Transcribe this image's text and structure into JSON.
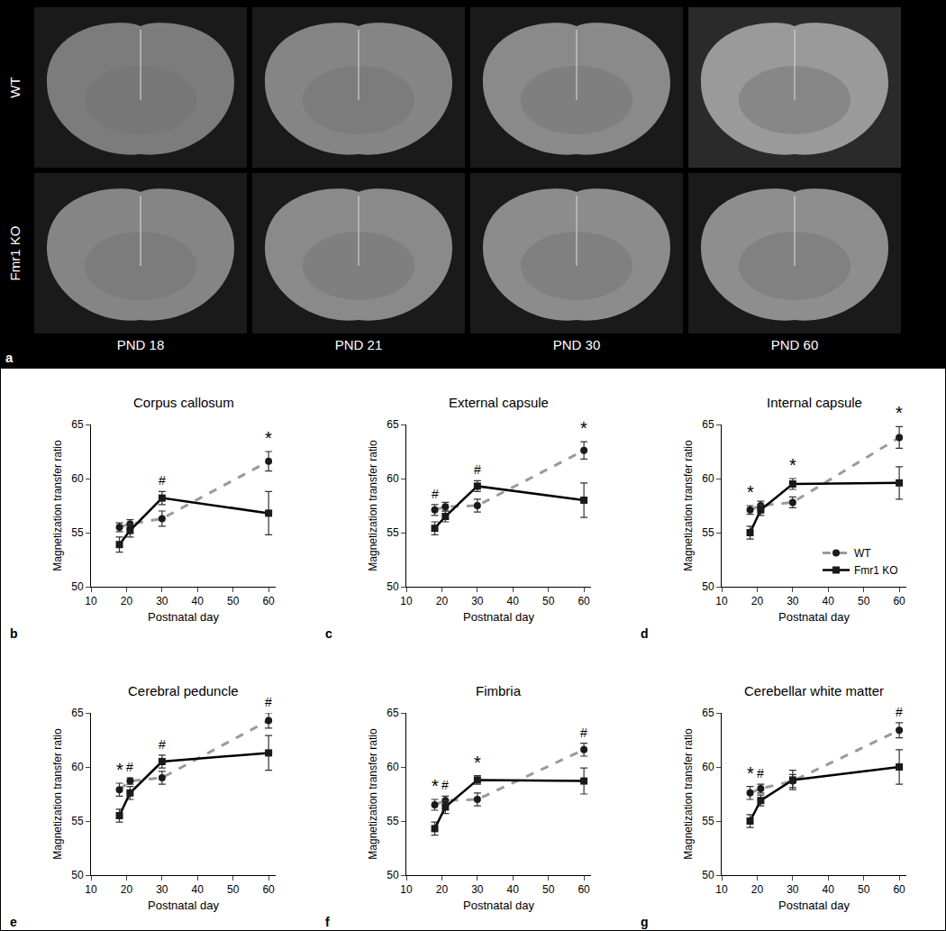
{
  "panel_a": {
    "label": "a",
    "rows": [
      "WT",
      "Fmr1 KO"
    ],
    "columns": [
      "PND 18",
      "PND 21",
      "PND 30",
      "PND 60"
    ]
  },
  "chart_data": [
    {
      "type": "line",
      "panel": "b",
      "title": "Corpus callosum",
      "x_label": "Postnatal day",
      "y_label": "Magnetization transfer ratio",
      "x": [
        18,
        21,
        30,
        60
      ],
      "xlim": [
        10,
        62
      ],
      "xticks": [
        10,
        20,
        30,
        40,
        50,
        60
      ],
      "ylim": [
        50,
        65
      ],
      "yticks": [
        50,
        55,
        60,
        65
      ],
      "grid": false,
      "series": [
        {
          "name": "WT",
          "color": "#9a9a9a",
          "line_style": "dashed",
          "marker": "circle",
          "values": [
            55.5,
            55.8,
            56.3,
            61.6
          ],
          "errors": [
            0.4,
            0.4,
            0.7,
            0.9
          ]
        },
        {
          "name": "Fmr1 KO",
          "color": "#000000",
          "line_style": "solid",
          "marker": "square",
          "values": [
            53.9,
            55.2,
            58.2,
            56.8
          ],
          "errors": [
            0.7,
            0.6,
            0.6,
            2.0
          ]
        }
      ],
      "annotations": [
        {
          "x": 30,
          "text": "#"
        },
        {
          "x": 60,
          "text": "*"
        }
      ]
    },
    {
      "type": "line",
      "panel": "c",
      "title": "External capsule",
      "x_label": "Postnatal day",
      "y_label": "Magnetization transfer ratio",
      "x": [
        18,
        21,
        30,
        60
      ],
      "xlim": [
        10,
        62
      ],
      "xticks": [
        10,
        20,
        30,
        40,
        50,
        60
      ],
      "ylim": [
        50,
        65
      ],
      "yticks": [
        50,
        55,
        60,
        65
      ],
      "grid": false,
      "series": [
        {
          "name": "WT",
          "color": "#9a9a9a",
          "line_style": "dashed",
          "marker": "circle",
          "values": [
            57.1,
            57.4,
            57.5,
            62.6
          ],
          "errors": [
            0.5,
            0.4,
            0.6,
            0.8
          ]
        },
        {
          "name": "Fmr1 KO",
          "color": "#000000",
          "line_style": "solid",
          "marker": "square",
          "values": [
            55.4,
            56.5,
            59.3,
            58.0
          ],
          "errors": [
            0.6,
            0.5,
            0.5,
            1.6
          ]
        }
      ],
      "annotations": [
        {
          "x": 18,
          "text": "#"
        },
        {
          "x": 30,
          "text": "#"
        },
        {
          "x": 60,
          "text": "*"
        }
      ]
    },
    {
      "type": "line",
      "panel": "d",
      "title": "Internal capsule",
      "x_label": "Postnatal day",
      "y_label": "Magnetization transfer ratio",
      "x": [
        18,
        21,
        30,
        60
      ],
      "xlim": [
        10,
        62
      ],
      "xticks": [
        10,
        20,
        30,
        40,
        50,
        60
      ],
      "ylim": [
        50,
        65
      ],
      "yticks": [
        50,
        55,
        60,
        65
      ],
      "grid": false,
      "legend": "lower right",
      "series": [
        {
          "name": "WT",
          "color": "#9a9a9a",
          "line_style": "dashed",
          "marker": "circle",
          "values": [
            57.1,
            57.5,
            57.8,
            63.8
          ],
          "errors": [
            0.4,
            0.4,
            0.5,
            1.0
          ]
        },
        {
          "name": "Fmr1 KO",
          "color": "#000000",
          "line_style": "solid",
          "marker": "square",
          "values": [
            55.0,
            57.1,
            59.5,
            59.6
          ],
          "errors": [
            0.6,
            0.5,
            0.5,
            1.5
          ]
        }
      ],
      "annotations": [
        {
          "x": 18,
          "text": "*"
        },
        {
          "x": 30,
          "text": "*"
        },
        {
          "x": 60,
          "text": "*"
        }
      ]
    },
    {
      "type": "line",
      "panel": "e",
      "title": "Cerebral peduncle",
      "x_label": "Postnatal day",
      "y_label": "Magnetization transfer ratio",
      "x": [
        18,
        21,
        30,
        60
      ],
      "xlim": [
        10,
        62
      ],
      "xticks": [
        10,
        20,
        30,
        40,
        50,
        60
      ],
      "ylim": [
        50,
        65
      ],
      "yticks": [
        50,
        55,
        60,
        65
      ],
      "grid": false,
      "series": [
        {
          "name": "WT",
          "color": "#9a9a9a",
          "line_style": "dashed",
          "marker": "circle",
          "values": [
            57.9,
            58.7,
            59.0,
            64.3
          ],
          "errors": [
            0.6,
            0.3,
            0.6,
            0.7
          ]
        },
        {
          "name": "Fmr1 KO",
          "color": "#000000",
          "line_style": "solid",
          "marker": "square",
          "values": [
            55.5,
            57.6,
            60.5,
            61.3
          ],
          "errors": [
            0.6,
            0.6,
            0.6,
            1.6
          ]
        }
      ],
      "annotations": [
        {
          "x": 18,
          "text": "*"
        },
        {
          "x": 21,
          "text": "#"
        },
        {
          "x": 30,
          "text": "#"
        },
        {
          "x": 60,
          "text": "#"
        }
      ]
    },
    {
      "type": "line",
      "panel": "f",
      "title": "Fimbria",
      "x_label": "Postnatal day",
      "y_label": "Magnetization transfer ratio",
      "x": [
        18,
        21,
        30,
        60
      ],
      "xlim": [
        10,
        62
      ],
      "xticks": [
        10,
        20,
        30,
        40,
        50,
        60
      ],
      "ylim": [
        50,
        65
      ],
      "yticks": [
        50,
        55,
        60,
        65
      ],
      "grid": false,
      "series": [
        {
          "name": "WT",
          "color": "#9a9a9a",
          "line_style": "dashed",
          "marker": "circle",
          "values": [
            56.5,
            56.9,
            57.0,
            61.6
          ],
          "errors": [
            0.5,
            0.4,
            0.6,
            0.6
          ]
        },
        {
          "name": "Fmr1 KO",
          "color": "#000000",
          "line_style": "solid",
          "marker": "square",
          "values": [
            54.3,
            56.3,
            58.8,
            58.7
          ],
          "errors": [
            0.6,
            0.6,
            0.4,
            1.2
          ]
        }
      ],
      "annotations": [
        {
          "x": 18,
          "text": "*"
        },
        {
          "x": 21,
          "text": "#"
        },
        {
          "x": 30,
          "text": "*"
        },
        {
          "x": 60,
          "text": "#"
        }
      ]
    },
    {
      "type": "line",
      "panel": "g",
      "title": "Cerebellar white matter",
      "x_label": "Postnatal day",
      "y_label": "Magnetization transfer ratio",
      "x": [
        18,
        21,
        30,
        60
      ],
      "xlim": [
        10,
        62
      ],
      "xticks": [
        10,
        20,
        30,
        40,
        50,
        60
      ],
      "ylim": [
        50,
        65
      ],
      "yticks": [
        50,
        55,
        60,
        65
      ],
      "grid": false,
      "series": [
        {
          "name": "WT",
          "color": "#9a9a9a",
          "line_style": "dashed",
          "marker": "circle",
          "values": [
            57.6,
            58.0,
            58.7,
            63.4
          ],
          "errors": [
            0.6,
            0.4,
            0.6,
            0.7
          ]
        },
        {
          "name": "Fmr1 KO",
          "color": "#000000",
          "line_style": "solid",
          "marker": "square",
          "values": [
            55.0,
            56.9,
            58.8,
            60.0
          ],
          "errors": [
            0.6,
            0.5,
            0.9,
            1.6
          ]
        }
      ],
      "annotations": [
        {
          "x": 18,
          "text": "*"
        },
        {
          "x": 21,
          "text": "#"
        },
        {
          "x": 60,
          "text": "#"
        }
      ]
    }
  ]
}
